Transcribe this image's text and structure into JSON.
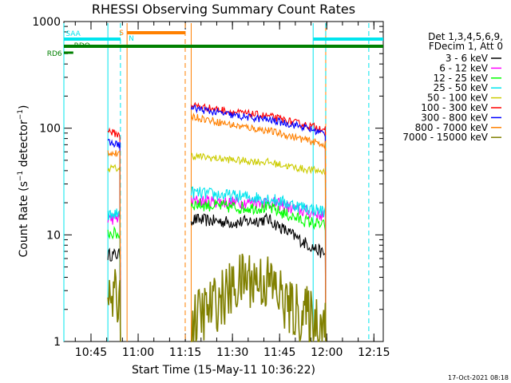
{
  "chart_data": {
    "type": "line",
    "title": "RHESSI Observing Summary Count Rates",
    "xlabel": "Start Time (15-May-11 10:36:22)",
    "ylabel": "Count Rate (s⁻¹ detector⁻¹)",
    "ylabel_base": "Count Rate (s",
    "ylabel_sup1": "−1",
    "ylabel_mid": " detector",
    "ylabel_sup2": "−1",
    "ylabel_end": ")",
    "y_scale": "log",
    "ylim": [
      1,
      1000
    ],
    "x_unit": "minutes after 10:36:22",
    "xlim": [
      0,
      101.6
    ],
    "y_ticks": [
      {
        "value": 1,
        "label": "1"
      },
      {
        "value": 10,
        "label": "10"
      },
      {
        "value": 100,
        "label": "100"
      },
      {
        "value": 1000,
        "label": "1000"
      }
    ],
    "x_ticks": [
      {
        "value": 8.63,
        "label": "10:45"
      },
      {
        "value": 23.63,
        "label": "11:00"
      },
      {
        "value": 38.63,
        "label": "11:15"
      },
      {
        "value": 53.63,
        "label": "11:30"
      },
      {
        "value": 68.63,
        "label": "11:45"
      },
      {
        "value": 83.63,
        "label": "12:00"
      },
      {
        "value": 98.63,
        "label": "12:15"
      }
    ],
    "legend_header": [
      "Det 1,3,4,5,6,9,",
      "FDecim 1, Att 0"
    ],
    "legend_placement": "right",
    "timestamp": "17-Oct-2021 08:18",
    "flags": [
      {
        "label": "SAA",
        "color": "#00e5ee"
      },
      {
        "label": "S",
        "color": "#ff8000"
      },
      {
        "label": "N",
        "color": "#00e5ee"
      },
      {
        "label": "RDO",
        "color": "#008000"
      },
      {
        "label": "RD6",
        "color": "#008000"
      }
    ],
    "flag_segments": {
      "SAA": [
        [
          0,
          18.05
        ],
        [
          79.4,
          101.6
        ]
      ],
      "S_eclipse": [
        20.2,
        38.6
      ],
      "RDO": [
        0,
        101.6
      ],
      "RD6": [
        0,
        3.0
      ]
    },
    "vertical_lines": [
      {
        "x": 0.0,
        "color": "#00e5ee",
        "style": "solid"
      },
      {
        "x": 14.0,
        "color": "#00e5ee",
        "style": "solid"
      },
      {
        "x": 18.0,
        "color": "#00e5ee",
        "style": "dashed"
      },
      {
        "x": 20.1,
        "color": "#ff8000",
        "style": "solid"
      },
      {
        "x": 38.6,
        "color": "#ff8000",
        "style": "dashed"
      },
      {
        "x": 40.5,
        "color": "#ff8000",
        "style": "solid"
      },
      {
        "x": 79.3,
        "color": "#00e5ee",
        "style": "solid"
      },
      {
        "x": 83.3,
        "color": "#ff8000",
        "style": "solid"
      },
      {
        "x": 83.3,
        "color": "#00e5ee",
        "style": "dashed"
      },
      {
        "x": 97.0,
        "color": "#00e5ee",
        "style": "dashed"
      }
    ],
    "segments": [
      [
        14.0,
        18.0
      ],
      [
        40.5,
        83.3
      ]
    ],
    "series": [
      {
        "label": "3 - 6 keV",
        "color": "#000000",
        "values": [
          [
            14.0,
            6.5
          ],
          [
            18.0,
            6.5
          ],
          [
            40.5,
            14.0
          ],
          [
            55.0,
            13.0
          ],
          [
            65.0,
            14.0
          ],
          [
            75.0,
            9.0
          ],
          [
            83.3,
            6.5
          ]
        ]
      },
      {
        "label": "6 - 12 keV",
        "color": "#ff00ff",
        "values": [
          [
            14.0,
            14.0
          ],
          [
            18.0,
            14.5
          ],
          [
            40.5,
            21.0
          ],
          [
            55.0,
            20.0
          ],
          [
            65.0,
            20.5
          ],
          [
            75.0,
            17.0
          ],
          [
            83.3,
            15.0
          ]
        ]
      },
      {
        "label": "12 - 25 keV",
        "color": "#00ff00",
        "values": [
          [
            14.0,
            10.5
          ],
          [
            18.0,
            10.0
          ],
          [
            40.5,
            19.5
          ],
          [
            55.0,
            18.0
          ],
          [
            65.0,
            18.0
          ],
          [
            75.0,
            14.0
          ],
          [
            83.3,
            12.0
          ]
        ]
      },
      {
        "label": "25 - 50 keV",
        "color": "#00e5ee",
        "values": [
          [
            14.0,
            15.0
          ],
          [
            18.0,
            16.0
          ],
          [
            40.5,
            25.0
          ],
          [
            55.0,
            23.0
          ],
          [
            65.0,
            22.0
          ],
          [
            75.0,
            18.5
          ],
          [
            83.3,
            16.5
          ]
        ]
      },
      {
        "label": "50 - 100 keV",
        "color": "#cccc00",
        "values": [
          [
            14.0,
            42.0
          ],
          [
            18.0,
            42.0
          ],
          [
            40.5,
            55.0
          ],
          [
            55.0,
            50.0
          ],
          [
            65.0,
            48.0
          ],
          [
            75.0,
            42.0
          ],
          [
            83.3,
            39.0
          ]
        ]
      },
      {
        "label": "100 - 300 keV",
        "color": "#ff0000",
        "values": [
          [
            14.0,
            95.0
          ],
          [
            18.0,
            85.0
          ],
          [
            40.5,
            165.0
          ],
          [
            55.0,
            140.0
          ],
          [
            65.0,
            130.0
          ],
          [
            75.0,
            110.0
          ],
          [
            83.3,
            98.0
          ]
        ]
      },
      {
        "label": "300 - 800 keV",
        "color": "#0000ff",
        "values": [
          [
            14.0,
            73.0
          ],
          [
            18.0,
            70.0
          ],
          [
            40.5,
            155.0
          ],
          [
            55.0,
            130.0
          ],
          [
            65.0,
            120.0
          ],
          [
            75.0,
            105.0
          ],
          [
            83.3,
            88.0
          ]
        ]
      },
      {
        "label": "800 - 7000 keV",
        "color": "#ff8000",
        "values": [
          [
            14.0,
            60.0
          ],
          [
            18.0,
            56.0
          ],
          [
            40.5,
            130.0
          ],
          [
            55.0,
            105.0
          ],
          [
            65.0,
            95.0
          ],
          [
            75.0,
            80.0
          ],
          [
            83.3,
            70.0
          ]
        ]
      },
      {
        "label": "7000 - 15000 keV",
        "color": "#808000",
        "values": [
          [
            14.0,
            2.5
          ],
          [
            18.0,
            2.5
          ],
          [
            40.5,
            1.5
          ],
          [
            50.0,
            2.5
          ],
          [
            58.0,
            4.0
          ],
          [
            66.0,
            3.5
          ],
          [
            72.0,
            2.0
          ],
          [
            83.3,
            1.5
          ]
        ]
      }
    ]
  }
}
